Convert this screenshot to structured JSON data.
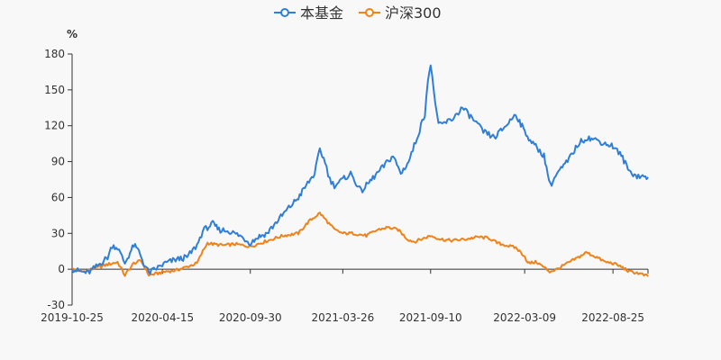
{
  "legend": {
    "fund_label": "本基金",
    "index_label": "沪深300"
  },
  "colors": {
    "fund": "#2f7fd8",
    "index": "#f08218",
    "axis": "#333333",
    "background": "#f8f8f8"
  },
  "chart_data": {
    "type": "line",
    "title": "",
    "xlabel": "",
    "ylabel": "%",
    "ylim": [
      -30,
      180
    ],
    "y_ticks": [
      "-30",
      "0",
      "30",
      "60",
      "90",
      "120",
      "150",
      "180"
    ],
    "x_ticks": [
      "2019-10-25",
      "2020-04-15",
      "2020-09-30",
      "2021-03-26",
      "2021-09-10",
      "2022-03-09",
      "2022-08-25"
    ],
    "x_range": [
      "2019-10-25",
      "2022-10-31"
    ],
    "grid": false,
    "legend_position": "top-center",
    "series": [
      {
        "name": "本基金",
        "color": "#2f7fd8",
        "points": [
          [
            "2019-10-25",
            0
          ],
          [
            "2019-11-10",
            -2
          ],
          [
            "2019-11-25",
            -3
          ],
          [
            "2019-12-10",
            2
          ],
          [
            "2020-01-01",
            10
          ],
          [
            "2020-01-10",
            20
          ],
          [
            "2020-01-20",
            18
          ],
          [
            "2020-02-03",
            5
          ],
          [
            "2020-02-20",
            20
          ],
          [
            "2020-03-01",
            15
          ],
          [
            "2020-03-10",
            5
          ],
          [
            "2020-03-20",
            -3
          ],
          [
            "2020-04-01",
            0
          ],
          [
            "2020-04-20",
            5
          ],
          [
            "2020-05-10",
            8
          ],
          [
            "2020-06-01",
            10
          ],
          [
            "2020-06-20",
            20
          ],
          [
            "2020-07-01",
            32
          ],
          [
            "2020-07-10",
            35
          ],
          [
            "2020-07-20",
            38
          ],
          [
            "2020-08-01",
            33
          ],
          [
            "2020-08-20",
            32
          ],
          [
            "2020-09-10",
            28
          ],
          [
            "2020-09-30",
            22
          ],
          [
            "2020-10-15",
            27
          ],
          [
            "2020-11-01",
            30
          ],
          [
            "2020-11-20",
            40
          ],
          [
            "2020-12-10",
            50
          ],
          [
            "2020-12-31",
            60
          ],
          [
            "2021-01-15",
            70
          ],
          [
            "2021-01-31",
            80
          ],
          [
            "2021-02-10",
            100
          ],
          [
            "2021-02-20",
            90
          ],
          [
            "2021-03-01",
            75
          ],
          [
            "2021-03-10",
            70
          ],
          [
            "2021-03-26",
            75
          ],
          [
            "2021-04-10",
            80
          ],
          [
            "2021-04-30",
            65
          ],
          [
            "2021-05-20",
            75
          ],
          [
            "2021-06-10",
            85
          ],
          [
            "2021-06-30",
            95
          ],
          [
            "2021-07-15",
            80
          ],
          [
            "2021-07-30",
            90
          ],
          [
            "2021-08-15",
            110
          ],
          [
            "2021-08-30",
            130
          ],
          [
            "2021-09-05",
            160
          ],
          [
            "2021-09-10",
            170
          ],
          [
            "2021-09-16",
            150
          ],
          [
            "2021-09-25",
            120
          ],
          [
            "2021-10-20",
            125
          ],
          [
            "2021-11-10",
            135
          ],
          [
            "2021-12-01",
            125
          ],
          [
            "2021-12-20",
            115
          ],
          [
            "2022-01-10",
            110
          ],
          [
            "2022-02-01",
            120
          ],
          [
            "2022-02-20",
            130
          ],
          [
            "2022-03-09",
            115
          ],
          [
            "2022-03-25",
            105
          ],
          [
            "2022-04-15",
            95
          ],
          [
            "2022-04-27",
            70
          ],
          [
            "2022-05-10",
            80
          ],
          [
            "2022-05-30",
            90
          ],
          [
            "2022-06-20",
            105
          ],
          [
            "2022-07-05",
            110
          ],
          [
            "2022-07-25",
            108
          ],
          [
            "2022-08-10",
            105
          ],
          [
            "2022-08-25",
            103
          ],
          [
            "2022-09-10",
            95
          ],
          [
            "2022-09-25",
            82
          ],
          [
            "2022-10-10",
            78
          ],
          [
            "2022-10-31",
            77
          ]
        ]
      },
      {
        "name": "沪深300",
        "color": "#f08218",
        "points": [
          [
            "2019-10-25",
            0
          ],
          [
            "2019-11-15",
            -2
          ],
          [
            "2019-12-10",
            1
          ],
          [
            "2020-01-01",
            4
          ],
          [
            "2020-01-20",
            6
          ],
          [
            "2020-02-03",
            -5
          ],
          [
            "2020-02-20",
            5
          ],
          [
            "2020-03-05",
            7
          ],
          [
            "2020-03-20",
            -5
          ],
          [
            "2020-04-01",
            -4
          ],
          [
            "2020-04-20",
            -2
          ],
          [
            "2020-05-10",
            -1
          ],
          [
            "2020-06-01",
            2
          ],
          [
            "2020-06-20",
            5
          ],
          [
            "2020-07-01",
            15
          ],
          [
            "2020-07-10",
            22
          ],
          [
            "2020-07-20",
            21
          ],
          [
            "2020-08-10",
            20
          ],
          [
            "2020-09-01",
            21
          ],
          [
            "2020-09-30",
            19
          ],
          [
            "2020-10-20",
            22
          ],
          [
            "2020-11-10",
            25
          ],
          [
            "2020-12-01",
            28
          ],
          [
            "2020-12-31",
            30
          ],
          [
            "2021-01-20",
            40
          ],
          [
            "2021-02-10",
            47
          ],
          [
            "2021-02-20",
            42
          ],
          [
            "2021-03-10",
            33
          ],
          [
            "2021-03-26",
            30
          ],
          [
            "2021-04-15",
            30
          ],
          [
            "2021-05-10",
            28
          ],
          [
            "2021-06-01",
            33
          ],
          [
            "2021-06-20",
            35
          ],
          [
            "2021-07-10",
            33
          ],
          [
            "2021-07-28",
            25
          ],
          [
            "2021-08-10",
            23
          ],
          [
            "2021-09-10",
            28
          ],
          [
            "2021-09-30",
            25
          ],
          [
            "2021-10-20",
            24
          ],
          [
            "2021-11-15",
            25
          ],
          [
            "2021-12-10",
            27
          ],
          [
            "2021-12-31",
            26
          ],
          [
            "2022-01-15",
            22
          ],
          [
            "2022-02-01",
            20
          ],
          [
            "2022-02-20",
            18
          ],
          [
            "2022-03-09",
            11
          ],
          [
            "2022-03-15",
            5
          ],
          [
            "2022-04-01",
            6
          ],
          [
            "2022-04-26",
            -2
          ],
          [
            "2022-05-10",
            0
          ],
          [
            "2022-05-30",
            5
          ],
          [
            "2022-06-20",
            10
          ],
          [
            "2022-07-05",
            14
          ],
          [
            "2022-07-25",
            10
          ],
          [
            "2022-08-10",
            6
          ],
          [
            "2022-08-25",
            5
          ],
          [
            "2022-09-10",
            2
          ],
          [
            "2022-09-25",
            -2
          ],
          [
            "2022-10-10",
            -3
          ],
          [
            "2022-10-31",
            -6
          ]
        ]
      }
    ]
  }
}
